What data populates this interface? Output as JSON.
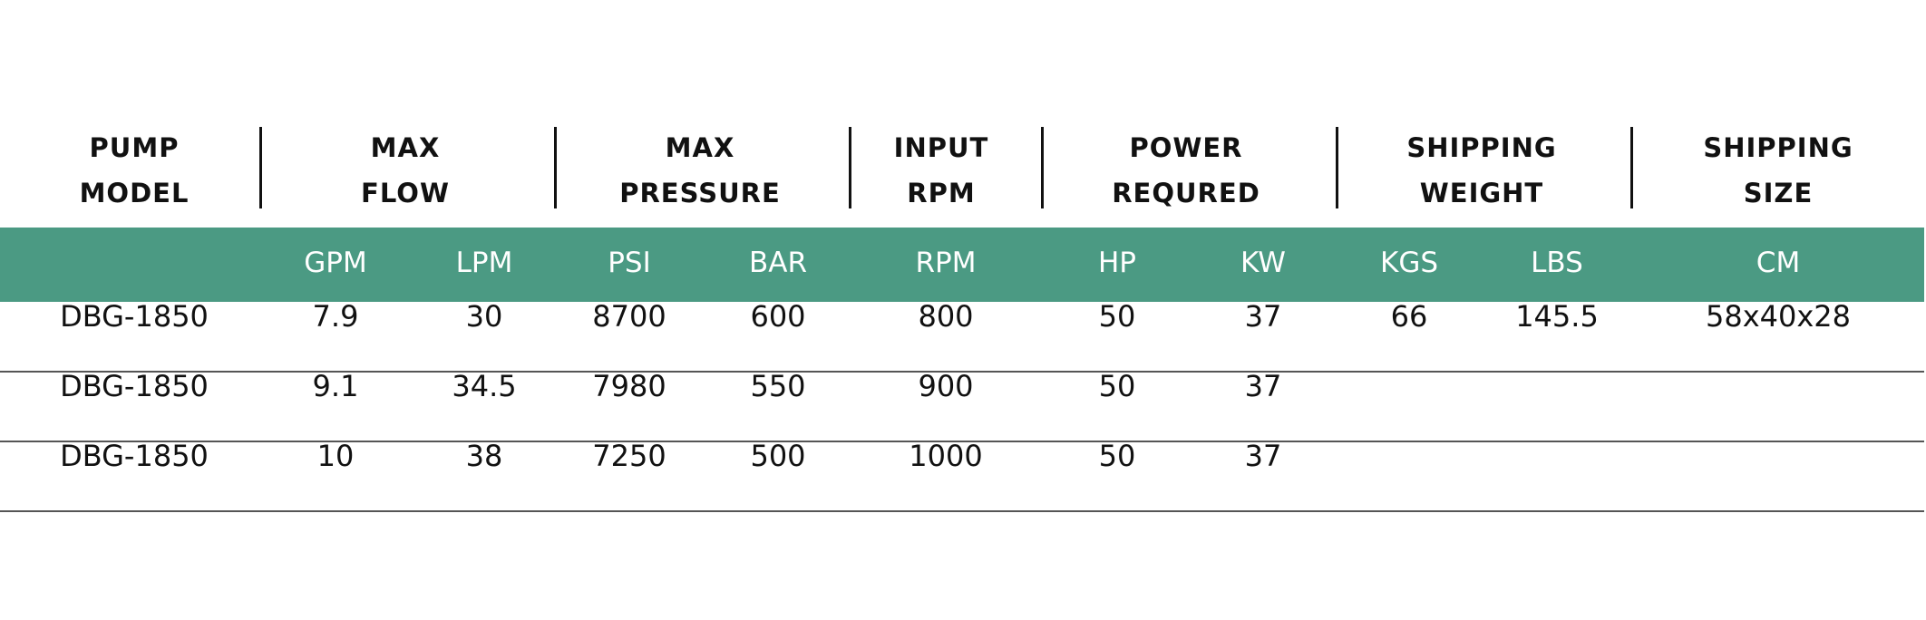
{
  "colors": {
    "band": "#4b9a83"
  },
  "headers": [
    {
      "line1": "PUMP",
      "line2": "MODEL"
    },
    {
      "line1": "MAX",
      "line2": "FLOW"
    },
    {
      "line1": "MAX",
      "line2": "PRESSURE"
    },
    {
      "line1": "INPUT",
      "line2": "RPM"
    },
    {
      "line1": "POWER",
      "line2": "REQURED"
    },
    {
      "line1": "SHIPPING",
      "line2": "WEIGHT"
    },
    {
      "line1": "SHIPPING",
      "line2": "SIZE"
    }
  ],
  "units": [
    "",
    "GPM",
    "LPM",
    "PSI",
    "BAR",
    "RPM",
    "HP",
    "KW",
    "KGS",
    "LBS",
    "CM"
  ],
  "rows": [
    [
      "DBG-1850",
      "7.9",
      "30",
      "8700",
      "600",
      "800",
      "50",
      "37",
      "66",
      "145.5",
      "58x40x28"
    ],
    [
      "DBG-1850",
      "9.1",
      "34.5",
      "7980",
      "550",
      "900",
      "50",
      "37",
      "",
      "",
      ""
    ],
    [
      "DBG-1850",
      "10",
      "38",
      "7250",
      "500",
      "1000",
      "50",
      "37",
      "",
      "",
      ""
    ]
  ]
}
